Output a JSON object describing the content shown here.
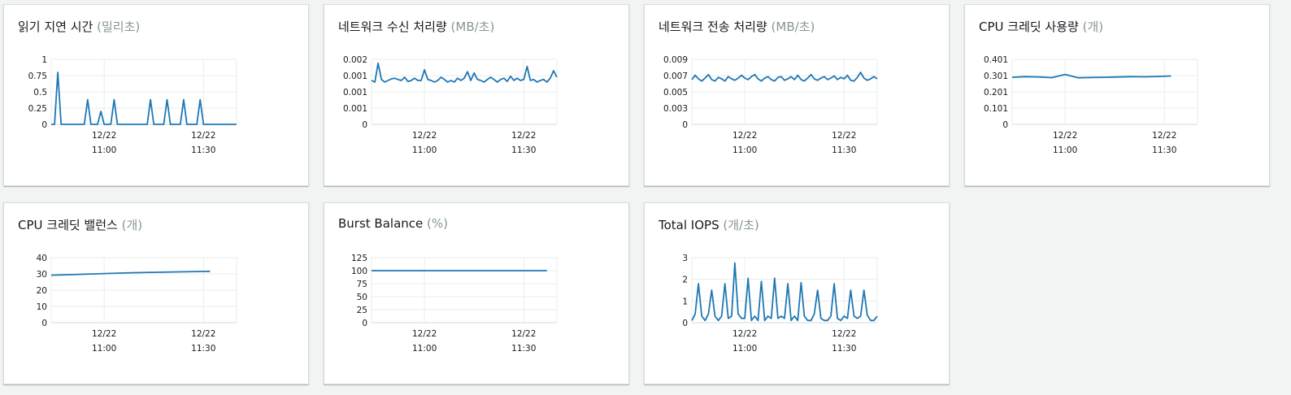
{
  "colors": {
    "line": "#1f77b4",
    "grid": "#eaeded",
    "axis": "#d5dbdb"
  },
  "x_ticks": [
    [
      "12/22",
      "11:00"
    ],
    [
      "12/22",
      "11:30"
    ]
  ],
  "cards": [
    {
      "title": "읽기 지연 시간",
      "unit": "(밀리초)"
    },
    {
      "title": "네트워크 수신 처리량",
      "unit": "(MB/초)"
    },
    {
      "title": "네트워크 전송 처리량",
      "unit": "(MB/초)"
    },
    {
      "title": "CPU 크레딧 사용량",
      "unit": "(개)"
    },
    {
      "title": "CPU 크레딧 밸런스",
      "unit": "(개)"
    },
    {
      "title": "Burst Balance",
      "unit": "(%)"
    },
    {
      "title": "Total IOPS",
      "unit": "(개/초)"
    }
  ],
  "chart_data": [
    {
      "type": "line",
      "title": "읽기 지연 시간 (밀리초)",
      "ylim": [
        0,
        1
      ],
      "y_ticks": [
        "1",
        "0.75",
        "0.5",
        "0.25",
        "0"
      ],
      "x_tick_minutes": [
        0,
        30
      ],
      "x_range_minutes": [
        -16,
        40
      ],
      "x": [
        -16,
        -15,
        -14,
        -13,
        -12,
        -11,
        -10,
        -9,
        -8,
        -7,
        -6,
        -5,
        -4,
        -3,
        -2,
        -1,
        0,
        1,
        2,
        3,
        4,
        5,
        6,
        7,
        8,
        9,
        10,
        11,
        12,
        13,
        14,
        15,
        16,
        17,
        18,
        19,
        20,
        21,
        22,
        23,
        24,
        25,
        26,
        27,
        28,
        29,
        30,
        31,
        32,
        33,
        34,
        35,
        36,
        37,
        38,
        39,
        40
      ],
      "values": [
        0,
        0,
        0.8,
        0,
        0,
        0,
        0,
        0,
        0,
        0,
        0,
        0.38,
        0,
        0,
        0,
        0.2,
        0,
        0,
        0,
        0.38,
        0,
        0,
        0,
        0,
        0,
        0,
        0,
        0,
        0,
        0,
        0.38,
        0,
        0,
        0,
        0,
        0.38,
        0,
        0,
        0,
        0,
        0.38,
        0,
        0,
        0,
        0,
        0.38,
        0,
        0,
        0,
        0,
        0,
        0,
        0,
        0,
        0,
        0,
        0
      ]
    },
    {
      "type": "line",
      "title": "네트워크 수신 처리량 (MB/초)",
      "ylim": [
        0,
        0.002
      ],
      "y_ticks": [
        "0.002",
        "0.001",
        "0.001",
        "0.001",
        "0"
      ],
      "x_tick_minutes": [
        0,
        30
      ],
      "x_range_minutes": [
        -16,
        40
      ],
      "x": [
        -16,
        -15,
        -14,
        -13,
        -12,
        -11,
        -10,
        -9,
        -8,
        -7,
        -6,
        -5,
        -4,
        -3,
        -2,
        -1,
        0,
        1,
        2,
        3,
        4,
        5,
        6,
        7,
        8,
        9,
        10,
        11,
        12,
        13,
        14,
        15,
        16,
        17,
        18,
        19,
        20,
        21,
        22,
        23,
        24,
        25,
        26,
        27,
        28,
        29,
        30,
        31,
        32,
        33,
        34,
        35,
        36,
        37,
        38,
        39,
        40
      ],
      "values": [
        0.00135,
        0.0013,
        0.00188,
        0.00138,
        0.0013,
        0.00135,
        0.0014,
        0.00142,
        0.00138,
        0.00135,
        0.00145,
        0.00132,
        0.00135,
        0.00142,
        0.00135,
        0.00135,
        0.00168,
        0.00138,
        0.00135,
        0.0013,
        0.00135,
        0.00145,
        0.00138,
        0.0013,
        0.00135,
        0.0013,
        0.00142,
        0.00135,
        0.00142,
        0.00162,
        0.00135,
        0.00158,
        0.00138,
        0.00135,
        0.0013,
        0.00138,
        0.00145,
        0.00138,
        0.0013,
        0.00138,
        0.00142,
        0.00132,
        0.00148,
        0.00135,
        0.00142,
        0.00135,
        0.00138,
        0.00178,
        0.00135,
        0.00138,
        0.0013,
        0.00135,
        0.00138,
        0.0013,
        0.00142,
        0.00165,
        0.00145
      ]
    },
    {
      "type": "line",
      "title": "네트워크 전송 처리량 (MB/초)",
      "ylim": [
        0,
        0.009
      ],
      "y_ticks": [
        "0.009",
        "0.007",
        "0.005",
        "0.003",
        "0"
      ],
      "x_tick_minutes": [
        0,
        30
      ],
      "x_range_minutes": [
        -16,
        40
      ],
      "x": [
        -16,
        -15,
        -14,
        -13,
        -12,
        -11,
        -10,
        -9,
        -8,
        -7,
        -6,
        -5,
        -4,
        -3,
        -2,
        -1,
        0,
        1,
        2,
        3,
        4,
        5,
        6,
        7,
        8,
        9,
        10,
        11,
        12,
        13,
        14,
        15,
        16,
        17,
        18,
        19,
        20,
        21,
        22,
        23,
        24,
        25,
        26,
        27,
        28,
        29,
        30,
        31,
        32,
        33,
        34,
        35,
        36,
        37,
        38,
        39,
        40
      ],
      "values": [
        0.0062,
        0.0068,
        0.0063,
        0.006,
        0.0064,
        0.0069,
        0.0062,
        0.006,
        0.0065,
        0.0063,
        0.006,
        0.0066,
        0.0063,
        0.0061,
        0.0064,
        0.0068,
        0.0064,
        0.0062,
        0.0066,
        0.0069,
        0.0063,
        0.006,
        0.0064,
        0.0066,
        0.0062,
        0.006,
        0.0065,
        0.0066,
        0.0061,
        0.0063,
        0.0066,
        0.0062,
        0.0068,
        0.0062,
        0.006,
        0.0064,
        0.0069,
        0.0063,
        0.0061,
        0.0064,
        0.0066,
        0.0062,
        0.0064,
        0.0067,
        0.0062,
        0.0065,
        0.0063,
        0.0068,
        0.0061,
        0.006,
        0.0065,
        0.0072,
        0.0064,
        0.0061,
        0.0063,
        0.0066,
        0.0063
      ]
    },
    {
      "type": "line",
      "title": "CPU 크레딧 사용량 (개)",
      "ylim": [
        0,
        0.401
      ],
      "y_ticks": [
        "0.401",
        "0.301",
        "0.201",
        "0.101",
        "0"
      ],
      "x_tick_minutes": [
        0,
        30
      ],
      "x_range_minutes": [
        -16,
        40
      ],
      "x": [
        -16,
        -12,
        -8,
        -4,
        0,
        4,
        8,
        12,
        16,
        20,
        24,
        28,
        32
      ],
      "values": [
        0.29,
        0.294,
        0.292,
        0.288,
        0.308,
        0.287,
        0.289,
        0.29,
        0.292,
        0.294,
        0.293,
        0.295,
        0.298
      ]
    },
    {
      "type": "line",
      "title": "CPU 크레딧 밸런스 (개)",
      "ylim": [
        0,
        40
      ],
      "y_ticks": [
        "40",
        "30",
        "20",
        "10",
        "0"
      ],
      "x_tick_minutes": [
        0,
        30
      ],
      "x_range_minutes": [
        -16,
        40
      ],
      "x": [
        -16,
        -8,
        0,
        8,
        16,
        24,
        32
      ],
      "values": [
        29.2,
        29.7,
        30.2,
        30.7,
        31.0,
        31.3,
        31.6
      ]
    },
    {
      "type": "line",
      "title": "Burst Balance (%)",
      "ylim": [
        0,
        125
      ],
      "y_ticks": [
        "125",
        "100",
        "75",
        "50",
        "25",
        "0"
      ],
      "x_tick_minutes": [
        0,
        30
      ],
      "x_range_minutes": [
        -16,
        40
      ],
      "x": [
        -16,
        -8,
        0,
        8,
        16,
        24,
        32,
        37
      ],
      "values": [
        100,
        100,
        100,
        100,
        100,
        100,
        100,
        100
      ]
    },
    {
      "type": "line",
      "title": "Total IOPS (개/초)",
      "ylim": [
        0,
        3
      ],
      "y_ticks": [
        "3",
        "2",
        "1",
        "0"
      ],
      "x_tick_minutes": [
        0,
        30
      ],
      "x_range_minutes": [
        -16,
        40
      ],
      "x": [
        -16,
        -15,
        -14,
        -13,
        -12,
        -11,
        -10,
        -9,
        -8,
        -7,
        -6,
        -5,
        -4,
        -3,
        -2,
        -1,
        0,
        1,
        2,
        3,
        4,
        5,
        6,
        7,
        8,
        9,
        10,
        11,
        12,
        13,
        14,
        15,
        16,
        17,
        18,
        19,
        20,
        21,
        22,
        23,
        24,
        25,
        26,
        27,
        28,
        29,
        30,
        31,
        32,
        33,
        34,
        35,
        36,
        37,
        38,
        39,
        40
      ],
      "values": [
        0.1,
        0.4,
        1.8,
        0.3,
        0.1,
        0.4,
        1.5,
        0.3,
        0.1,
        0.3,
        1.8,
        0.2,
        0.3,
        2.75,
        0.4,
        0.2,
        0.2,
        2.05,
        0.1,
        0.3,
        0.1,
        1.9,
        0.1,
        0.3,
        0.2,
        2.05,
        0.2,
        0.3,
        0.2,
        1.8,
        0.1,
        0.3,
        0.1,
        1.85,
        0.3,
        0.1,
        0.1,
        0.4,
        1.5,
        0.2,
        0.1,
        0.1,
        0.3,
        1.8,
        0.2,
        0.1,
        0.3,
        0.2,
        1.5,
        0.3,
        0.2,
        0.3,
        1.5,
        0.35,
        0.1,
        0.1,
        0.3
      ]
    }
  ]
}
